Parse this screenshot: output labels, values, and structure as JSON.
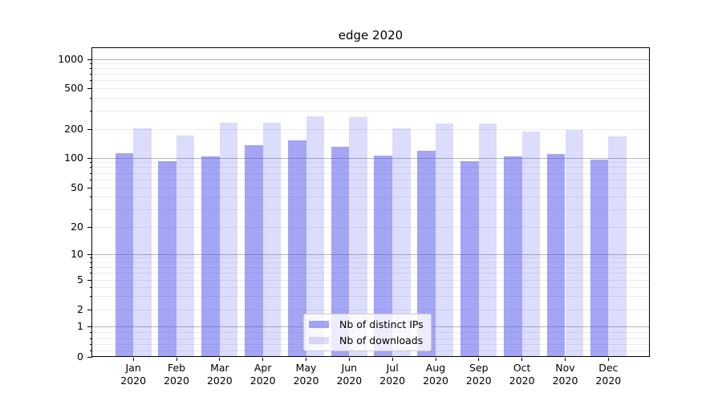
{
  "title": "edge 2020",
  "chart_data": {
    "type": "bar",
    "title": "edge 2020",
    "categories": [
      "Jan",
      "Feb",
      "Mar",
      "Apr",
      "May",
      "Jun",
      "Jul",
      "Aug",
      "Sep",
      "Oct",
      "Nov",
      "Dec"
    ],
    "x_tick_year": "2020",
    "series": [
      {
        "name": "Nb of distinct IPs",
        "color": "rgba(82,82,238,0.52)",
        "values": [
          113,
          93,
          103,
          135,
          153,
          131,
          105,
          120,
          93,
          104,
          110,
          97
        ]
      },
      {
        "name": "Nb of downloads",
        "color": "rgba(82,82,238,0.20)",
        "values": [
          205,
          170,
          230,
          230,
          265,
          260,
          204,
          225,
          225,
          190,
          196,
          168
        ]
      }
    ],
    "xlabel": "",
    "ylabel": "",
    "yscale": "symlog",
    "yticks": [
      0,
      1,
      2,
      5,
      10,
      20,
      50,
      100,
      200,
      500,
      1000
    ],
    "ylim": [
      0,
      1200
    ],
    "grid": true,
    "legend_position": "lower center",
    "colors": {
      "major_gridline": "#b3b3b3",
      "minor_gridline": "#ebebeb",
      "axis": "#000000"
    }
  }
}
